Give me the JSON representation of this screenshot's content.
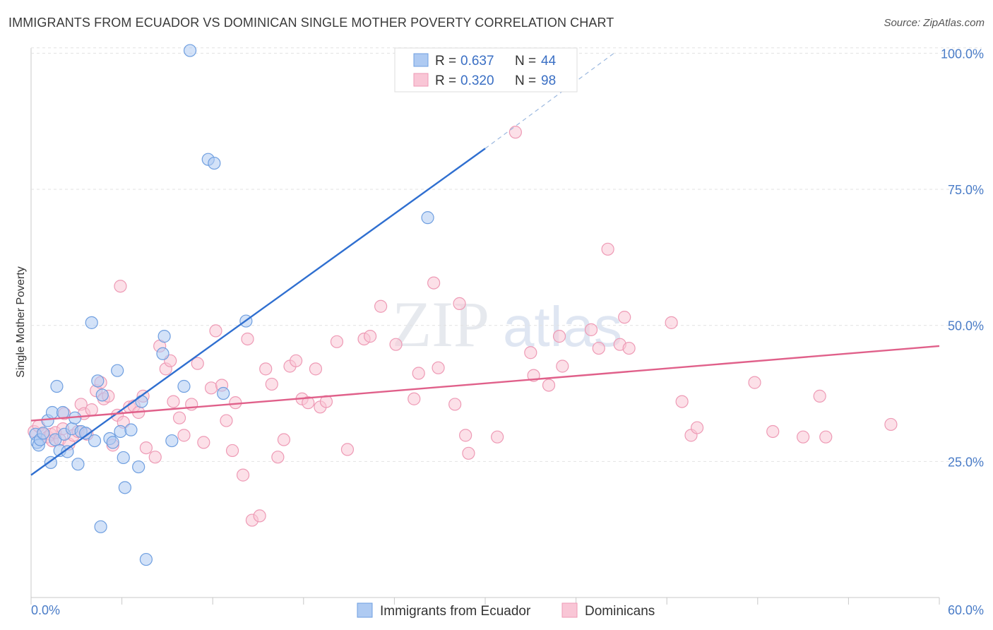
{
  "title": "IMMIGRANTS FROM ECUADOR VS DOMINICAN SINGLE MOTHER POVERTY CORRELATION CHART",
  "source": "Source: ZipAtlas.com",
  "watermark": {
    "zip": "ZIP",
    "atlas": "atlas"
  },
  "chart_data": {
    "type": "scatter",
    "title": "IMMIGRANTS FROM ECUADOR VS DOMINICAN SINGLE MOTHER POVERTY CORRELATION CHART",
    "xlabel": "",
    "ylabel": "Single Mother Poverty",
    "xlim": [
      0,
      60
    ],
    "ylim": [
      0,
      102
    ],
    "x_tick_labels": {
      "left": "0.0%",
      "right": "60.0%"
    },
    "y_ticks": [
      {
        "value": 25,
        "label": "25.0%"
      },
      {
        "value": 50,
        "label": "50.0%"
      },
      {
        "value": 75,
        "label": "75.0%"
      },
      {
        "value": 100,
        "label": "100.0%"
      }
    ],
    "legend": [
      {
        "r_label": "R =",
        "r_value": "0.637",
        "n_label": "N =",
        "n_value": "44"
      },
      {
        "r_label": "R =",
        "r_value": "0.320",
        "n_label": "N =",
        "n_value": "98"
      }
    ],
    "series": [
      {
        "name": "Immigrants from Ecuador",
        "color": "#6f9fe0",
        "fill": "#aecaf2",
        "line_color": "#2f6fd0",
        "trend": {
          "x0": 0,
          "y0": 22.5,
          "x1": 30,
          "y1": 82.5,
          "dash_to_x": 38.5,
          "dash_to_y": 100
        },
        "points": [
          [
            0.3,
            30.0
          ],
          [
            0.4,
            28.5
          ],
          [
            0.5,
            28.0
          ],
          [
            0.6,
            29.0
          ],
          [
            0.8,
            30.2
          ],
          [
            1.1,
            32.5
          ],
          [
            1.3,
            24.8
          ],
          [
            1.4,
            34.0
          ],
          [
            1.6,
            29.0
          ],
          [
            1.7,
            38.8
          ],
          [
            1.9,
            27.0
          ],
          [
            2.2,
            30.0
          ],
          [
            2.1,
            34.0
          ],
          [
            2.4,
            26.8
          ],
          [
            2.7,
            31.0
          ],
          [
            2.9,
            33.0
          ],
          [
            3.1,
            24.5
          ],
          [
            3.3,
            30.5
          ],
          [
            3.6,
            30.2
          ],
          [
            4.0,
            50.5
          ],
          [
            4.2,
            28.8
          ],
          [
            4.4,
            39.8
          ],
          [
            4.6,
            13.0
          ],
          [
            4.7,
            37.2
          ],
          [
            5.2,
            29.2
          ],
          [
            5.4,
            28.5
          ],
          [
            5.7,
            41.7
          ],
          [
            5.9,
            30.5
          ],
          [
            6.1,
            25.7
          ],
          [
            6.2,
            20.2
          ],
          [
            6.6,
            30.8
          ],
          [
            7.1,
            24.0
          ],
          [
            7.3,
            36.0
          ],
          [
            7.6,
            7.0
          ],
          [
            8.7,
            44.8
          ],
          [
            8.8,
            48.0
          ],
          [
            9.3,
            28.8
          ],
          [
            10.1,
            38.8
          ],
          [
            11.7,
            80.5
          ],
          [
            12.1,
            79.8
          ],
          [
            12.7,
            37.5
          ],
          [
            14.2,
            50.8
          ],
          [
            26.2,
            69.8
          ],
          [
            10.5,
            100.5
          ]
        ]
      },
      {
        "name": "Dominicans",
        "color": "#ee9ab5",
        "fill": "#f9c6d6",
        "line_color": "#e0608a",
        "trend": {
          "x0": 0,
          "y0": 32.5,
          "x1": 60,
          "y1": 46.2
        },
        "points": [
          [
            0.2,
            30.5
          ],
          [
            0.5,
            31.5
          ],
          [
            0.8,
            30.0
          ],
          [
            1.1,
            29.5
          ],
          [
            1.3,
            30.0
          ],
          [
            1.4,
            28.8
          ],
          [
            1.6,
            30.3
          ],
          [
            1.9,
            29.0
          ],
          [
            2.1,
            31.0
          ],
          [
            2.2,
            33.8
          ],
          [
            2.5,
            28.2
          ],
          [
            2.8,
            29.8
          ],
          [
            3.1,
            30.5
          ],
          [
            3.3,
            35.5
          ],
          [
            3.5,
            33.8
          ],
          [
            3.7,
            30.0
          ],
          [
            4.0,
            34.5
          ],
          [
            4.3,
            38.0
          ],
          [
            4.6,
            39.5
          ],
          [
            4.8,
            36.5
          ],
          [
            5.1,
            37.0
          ],
          [
            5.4,
            28.0
          ],
          [
            5.7,
            33.5
          ],
          [
            5.9,
            57.2
          ],
          [
            6.1,
            32.2
          ],
          [
            6.5,
            35.0
          ],
          [
            6.8,
            35.2
          ],
          [
            7.1,
            34.0
          ],
          [
            7.4,
            37.0
          ],
          [
            7.6,
            27.5
          ],
          [
            8.2,
            25.8
          ],
          [
            8.5,
            46.2
          ],
          [
            8.9,
            42.0
          ],
          [
            9.2,
            43.5
          ],
          [
            9.4,
            36.0
          ],
          [
            9.8,
            33.0
          ],
          [
            10.1,
            29.8
          ],
          [
            10.6,
            35.5
          ],
          [
            11.0,
            43.0
          ],
          [
            11.4,
            28.5
          ],
          [
            11.9,
            38.5
          ],
          [
            12.2,
            49.0
          ],
          [
            12.6,
            39.0
          ],
          [
            12.9,
            32.5
          ],
          [
            13.3,
            27.0
          ],
          [
            13.5,
            35.8
          ],
          [
            14.0,
            22.5
          ],
          [
            14.3,
            47.5
          ],
          [
            14.6,
            14.2
          ],
          [
            15.1,
            15.0
          ],
          [
            15.5,
            42.0
          ],
          [
            15.9,
            39.2
          ],
          [
            16.3,
            25.8
          ],
          [
            16.7,
            29.0
          ],
          [
            17.1,
            42.5
          ],
          [
            17.5,
            43.5
          ],
          [
            17.9,
            36.5
          ],
          [
            18.3,
            35.8
          ],
          [
            18.8,
            42.0
          ],
          [
            19.1,
            35.0
          ],
          [
            19.5,
            36.0
          ],
          [
            20.2,
            47.0
          ],
          [
            20.9,
            27.2
          ],
          [
            22.0,
            47.5
          ],
          [
            22.4,
            48.0
          ],
          [
            23.1,
            53.5
          ],
          [
            24.1,
            46.5
          ],
          [
            25.3,
            36.5
          ],
          [
            25.6,
            41.2
          ],
          [
            26.6,
            57.8
          ],
          [
            26.9,
            42.2
          ],
          [
            28.0,
            35.5
          ],
          [
            28.3,
            54.0
          ],
          [
            28.7,
            29.8
          ],
          [
            28.9,
            26.5
          ],
          [
            32.0,
            85.5
          ],
          [
            33.0,
            45.0
          ],
          [
            33.2,
            40.8
          ],
          [
            34.2,
            39.0
          ],
          [
            34.9,
            48.0
          ],
          [
            35.1,
            42.5
          ],
          [
            37.0,
            49.2
          ],
          [
            37.5,
            45.8
          ],
          [
            38.1,
            64.0
          ],
          [
            38.9,
            46.5
          ],
          [
            39.2,
            51.5
          ],
          [
            39.5,
            45.8
          ],
          [
            42.3,
            50.5
          ],
          [
            43.0,
            36.0
          ],
          [
            43.6,
            29.8
          ],
          [
            44.0,
            31.2
          ],
          [
            47.8,
            39.5
          ],
          [
            49.0,
            30.5
          ],
          [
            51.0,
            29.5
          ],
          [
            52.1,
            37.0
          ],
          [
            52.5,
            29.5
          ],
          [
            56.8,
            31.8
          ],
          [
            30.8,
            29.5
          ]
        ]
      }
    ]
  }
}
